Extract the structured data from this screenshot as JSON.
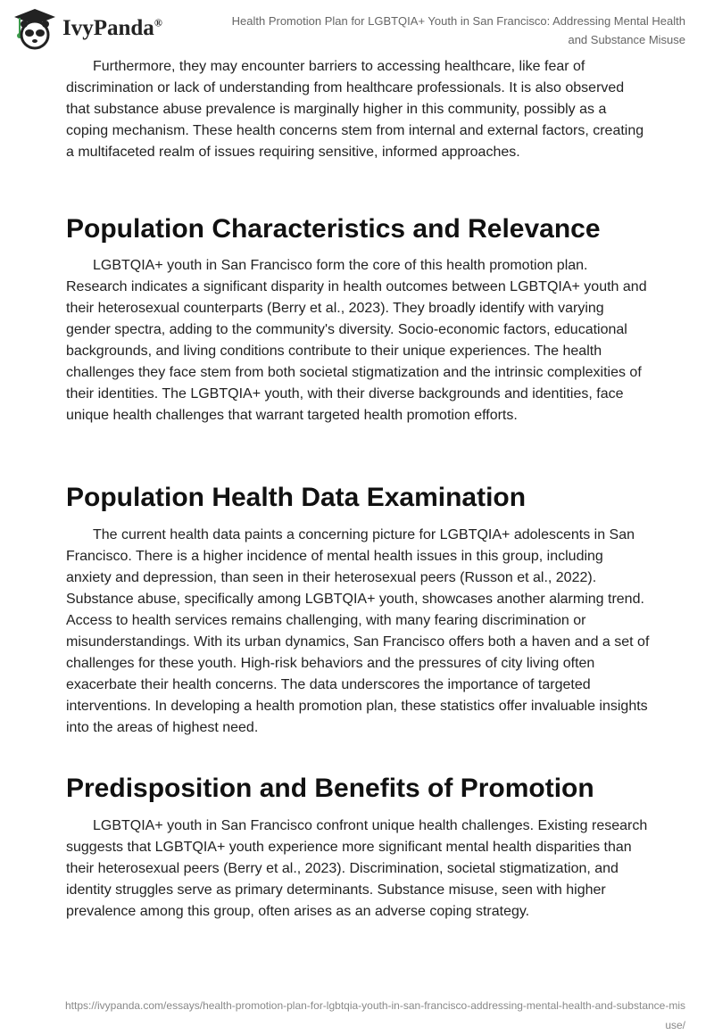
{
  "header": {
    "logo_text": "IvyPanda",
    "logo_mark": "®",
    "doc_title": "Health Promotion Plan for LGBTQIA+ Youth in San Francisco: Addressing Mental Health and Substance Misuse"
  },
  "sections": [
    {
      "heading": "",
      "paragraph": "Furthermore, they may encounter barriers to accessing healthcare, like fear of discrimination or lack of understanding from healthcare professionals. It is also observed that substance abuse prevalence is marginally higher in this community, possibly as a coping mechanism. These health concerns stem from internal and external factors, creating a multifaceted realm of issues requiring sensitive, informed approaches."
    },
    {
      "heading": "Population Characteristics and Relevance",
      "paragraph": "LGBTQIA+ youth in San Francisco form the core of this health promotion plan. Research indicates a significant disparity in health outcomes between LGBTQIA+ youth and their heterosexual counterparts (Berry et al., 2023). They broadly identify with varying gender spectra, adding to the community's diversity. Socio-economic factors, educational backgrounds, and living conditions contribute to their unique experiences. The health challenges they face stem from both societal stigmatization and the intrinsic complexities of their identities. The LGBTQIA+ youth, with their diverse backgrounds and identities, face unique health challenges that warrant targeted health promotion efforts."
    },
    {
      "heading": "Population Health Data Examination",
      "paragraph": "The current health data paints a concerning picture for LGBTQIA+ adolescents in San Francisco. There is a higher incidence of mental health issues in this group, including anxiety and depression, than seen in their heterosexual peers (Russon et al., 2022). Substance abuse, specifically among LGBTQIA+ youth, showcases another alarming trend. Access to health services remains challenging, with many fearing discrimination or misunderstandings. With its urban dynamics, San Francisco offers both a haven and a set of challenges for these youth. High-risk behaviors and the pressures of city living often exacerbate their health concerns. The data underscores the importance of targeted interventions. In developing a health promotion plan, these statistics offer invaluable insights into the areas of highest need."
    },
    {
      "heading": "Predisposition and Benefits of Promotion",
      "paragraph": "LGBTQIA+ youth in San Francisco confront unique health challenges. Existing research suggests that LGBTQIA+ youth experience more significant mental health disparities than their heterosexual peers (Berry et al., 2023). Discrimination, societal stigmatization, and identity struggles serve as primary determinants. Substance misuse, seen with higher prevalence among this group, often arises as an adverse coping strategy."
    }
  ],
  "footer": {
    "url": "https://ivypanda.com/essays/health-promotion-plan-for-lgbtqia-youth-in-san-francisco-addressing-mental-health-and-substance-misuse/"
  }
}
